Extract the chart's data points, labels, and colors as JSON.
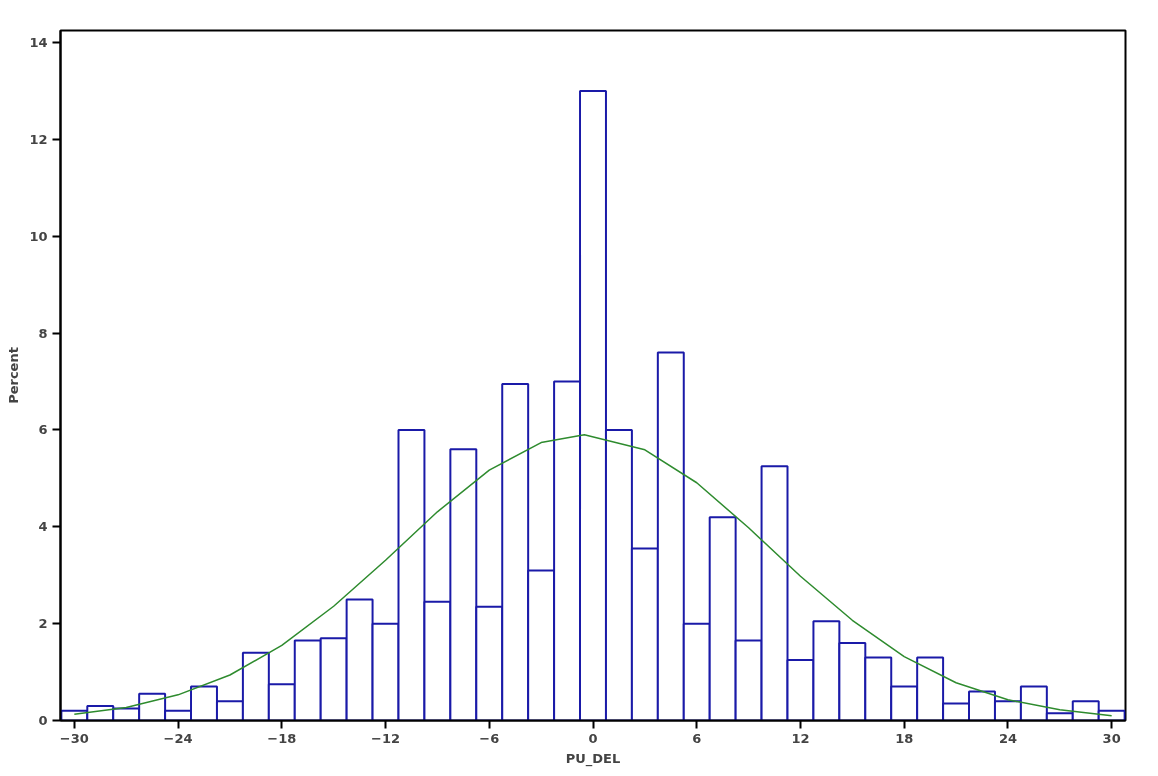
{
  "chart_data": {
    "type": "histogram",
    "xlabel": "PU_DEL",
    "ylabel": "Percent",
    "bins": [
      -30.75,
      -29.25,
      -27.75,
      -26.25,
      -24.75,
      -23.25,
      -21.75,
      -20.25,
      -18.75,
      -17.25,
      -15.75,
      -14.25,
      -12.75,
      -11.25,
      -9.75,
      -8.25,
      -6.75,
      -5.25,
      -3.75,
      -2.25,
      -0.75,
      0.75,
      2.25,
      3.75,
      5.25,
      6.75,
      8.25,
      9.75,
      11.25,
      12.75,
      14.25,
      15.75,
      17.25,
      18.75,
      20.25,
      21.75,
      23.25,
      24.75,
      26.25,
      27.75,
      29.25,
      30.75
    ],
    "values": [
      0.2,
      0.3,
      0.25,
      0.55,
      0.2,
      0.7,
      0.4,
      1.4,
      0.75,
      1.65,
      1.7,
      2.5,
      2.0,
      6.0,
      2.45,
      5.6,
      2.35,
      6.95,
      3.1,
      7.0,
      13.0,
      6.0,
      3.55,
      7.6,
      2.0,
      4.2,
      1.65,
      5.25,
      1.25,
      2.05,
      1.6,
      1.3,
      0.7,
      1.3,
      0.35,
      0.6,
      0.4,
      0.7,
      0.15,
      0.4,
      0.2
    ],
    "color": "#1a1aa8",
    "series": [
      {
        "type": "line",
        "color": "#2e8b2e",
        "x": [
          -30,
          -27,
          -24,
          -21,
          -18,
          -15,
          -12,
          -9,
          -6,
          -3,
          -0.5,
          3,
          6,
          9,
          12,
          15,
          18,
          21,
          24,
          27,
          30
        ],
        "values": [
          0.13,
          0.27,
          0.53,
          0.94,
          1.55,
          2.36,
          3.31,
          4.31,
          5.17,
          5.74,
          5.9,
          5.59,
          4.91,
          3.98,
          2.98,
          2.07,
          1.32,
          0.78,
          0.43,
          0.22,
          0.1
        ]
      }
    ],
    "xlim": [
      -30.8,
      30.8
    ],
    "ylim": [
      0,
      14.25
    ],
    "xticks": [
      -30,
      -24,
      -18,
      -12,
      -6,
      0,
      6,
      12,
      18,
      24,
      30
    ],
    "yticks": [
      0,
      2,
      4,
      6,
      8,
      10,
      12,
      14
    ],
    "grid": false
  }
}
